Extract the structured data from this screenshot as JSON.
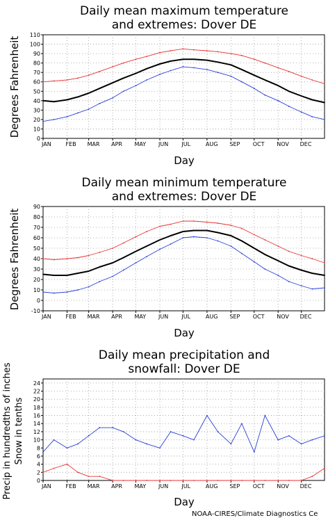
{
  "credit": "NOAA-CIRES/Climate Diagnostics Ce",
  "colors": {
    "record_high": "#e83030",
    "record_low": "#2a3fd6",
    "mean": "#000000",
    "grid": "#9a9a9a"
  },
  "chart_data": [
    {
      "type": "line",
      "title_lines": [
        "Daily mean maximum temperature",
        "and extremes: Dover DE"
      ],
      "xlabel": "Day",
      "ylabel": "Degrees Fahrenheit",
      "ylim": [
        0,
        110
      ],
      "yticks": [
        0,
        10,
        20,
        30,
        40,
        50,
        60,
        70,
        80,
        90,
        100,
        110
      ],
      "months": [
        "JAN",
        "FEB",
        "MAR",
        "APR",
        "MAY",
        "JUN",
        "JUL",
        "AUG",
        "SEP",
        "OCT",
        "NOV",
        "DEC"
      ],
      "grid": true,
      "x_day_of_year": [
        1,
        15,
        32,
        46,
        60,
        74,
        91,
        105,
        121,
        135,
        152,
        166,
        182,
        196,
        213,
        227,
        244,
        258,
        274,
        288,
        305,
        319,
        335,
        349,
        365
      ],
      "series": [
        {
          "key": "high",
          "values": [
            60,
            61,
            62,
            64,
            67,
            71,
            76,
            80,
            84,
            87,
            91,
            93,
            95,
            94,
            93,
            92,
            90,
            88,
            84,
            80,
            75,
            71,
            66,
            62,
            58
          ]
        },
        {
          "key": "mean",
          "values": [
            40,
            39,
            41,
            44,
            48,
            53,
            59,
            64,
            69,
            74,
            79,
            82,
            84,
            84,
            83,
            81,
            78,
            73,
            67,
            62,
            56,
            50,
            45,
            41,
            38
          ]
        },
        {
          "key": "low",
          "values": [
            18,
            20,
            23,
            27,
            31,
            37,
            43,
            50,
            56,
            62,
            68,
            72,
            76,
            75,
            73,
            70,
            66,
            60,
            53,
            46,
            40,
            34,
            28,
            23,
            20
          ]
        }
      ]
    },
    {
      "type": "line",
      "title_lines": [
        "Daily mean minimum temperature",
        "and extremes: Dover DE"
      ],
      "xlabel": "Day",
      "ylabel": "Degrees Fahrenheit",
      "ylim": [
        -10,
        90
      ],
      "yticks": [
        -10,
        0,
        10,
        20,
        30,
        40,
        50,
        60,
        70,
        80,
        90
      ],
      "months": [
        "JAN",
        "FEB",
        "MAR",
        "APR",
        "MAY",
        "JUN",
        "JUL",
        "AUG",
        "SEP",
        "OCT",
        "NOV",
        "DEC"
      ],
      "grid": true,
      "x_day_of_year": [
        1,
        15,
        32,
        46,
        60,
        74,
        91,
        105,
        121,
        135,
        152,
        166,
        182,
        196,
        213,
        227,
        244,
        258,
        274,
        288,
        305,
        319,
        335,
        349,
        365
      ],
      "series": [
        {
          "key": "high",
          "values": [
            40,
            39,
            40,
            41,
            43,
            46,
            50,
            55,
            61,
            66,
            71,
            73,
            76,
            76,
            75,
            74,
            72,
            69,
            63,
            58,
            52,
            47,
            43,
            40,
            36
          ]
        },
        {
          "key": "mean",
          "values": [
            25,
            24,
            24,
            26,
            28,
            32,
            36,
            41,
            47,
            52,
            58,
            62,
            66,
            67,
            67,
            65,
            62,
            57,
            50,
            44,
            38,
            33,
            29,
            26,
            24
          ]
        },
        {
          "key": "low",
          "values": [
            8,
            7,
            8,
            10,
            13,
            18,
            23,
            29,
            36,
            42,
            49,
            54,
            60,
            61,
            60,
            57,
            52,
            45,
            37,
            30,
            24,
            18,
            14,
            11,
            12
          ]
        }
      ]
    },
    {
      "type": "line",
      "title_lines": [
        "Daily mean precipitation and",
        "snowfall: Dover DE"
      ],
      "xlabel": "Day",
      "ylabel_lines": [
        "Precip in hundredths of inches",
        "Snow in tenths"
      ],
      "ylim": [
        0,
        25
      ],
      "yticks": [
        0,
        2,
        4,
        6,
        8,
        10,
        12,
        14,
        16,
        18,
        20,
        22,
        24
      ],
      "months": [
        "JAN",
        "FEB",
        "MAR",
        "APR",
        "MAY",
        "JUN",
        "JUL",
        "AUG",
        "SEP",
        "OCT",
        "NOV",
        "DEC"
      ],
      "grid": true,
      "x_day_of_year": [
        1,
        15,
        32,
        46,
        60,
        74,
        91,
        105,
        121,
        135,
        152,
        166,
        182,
        196,
        213,
        227,
        244,
        258,
        274,
        288,
        305,
        319,
        335,
        349,
        365
      ],
      "series": [
        {
          "key": "precip",
          "values": [
            7,
            10,
            8,
            9,
            11,
            13,
            13,
            12,
            10,
            9,
            8,
            12,
            11,
            10,
            16,
            12,
            9,
            14,
            7,
            16,
            10,
            11,
            9,
            10,
            11
          ]
        },
        {
          "key": "snow",
          "values": [
            2,
            3,
            4,
            2,
            1,
            1,
            0,
            0,
            0,
            0,
            0,
            0,
            0,
            0,
            0,
            0,
            0,
            0,
            0,
            0,
            0,
            0,
            0,
            1,
            3
          ]
        }
      ]
    }
  ]
}
